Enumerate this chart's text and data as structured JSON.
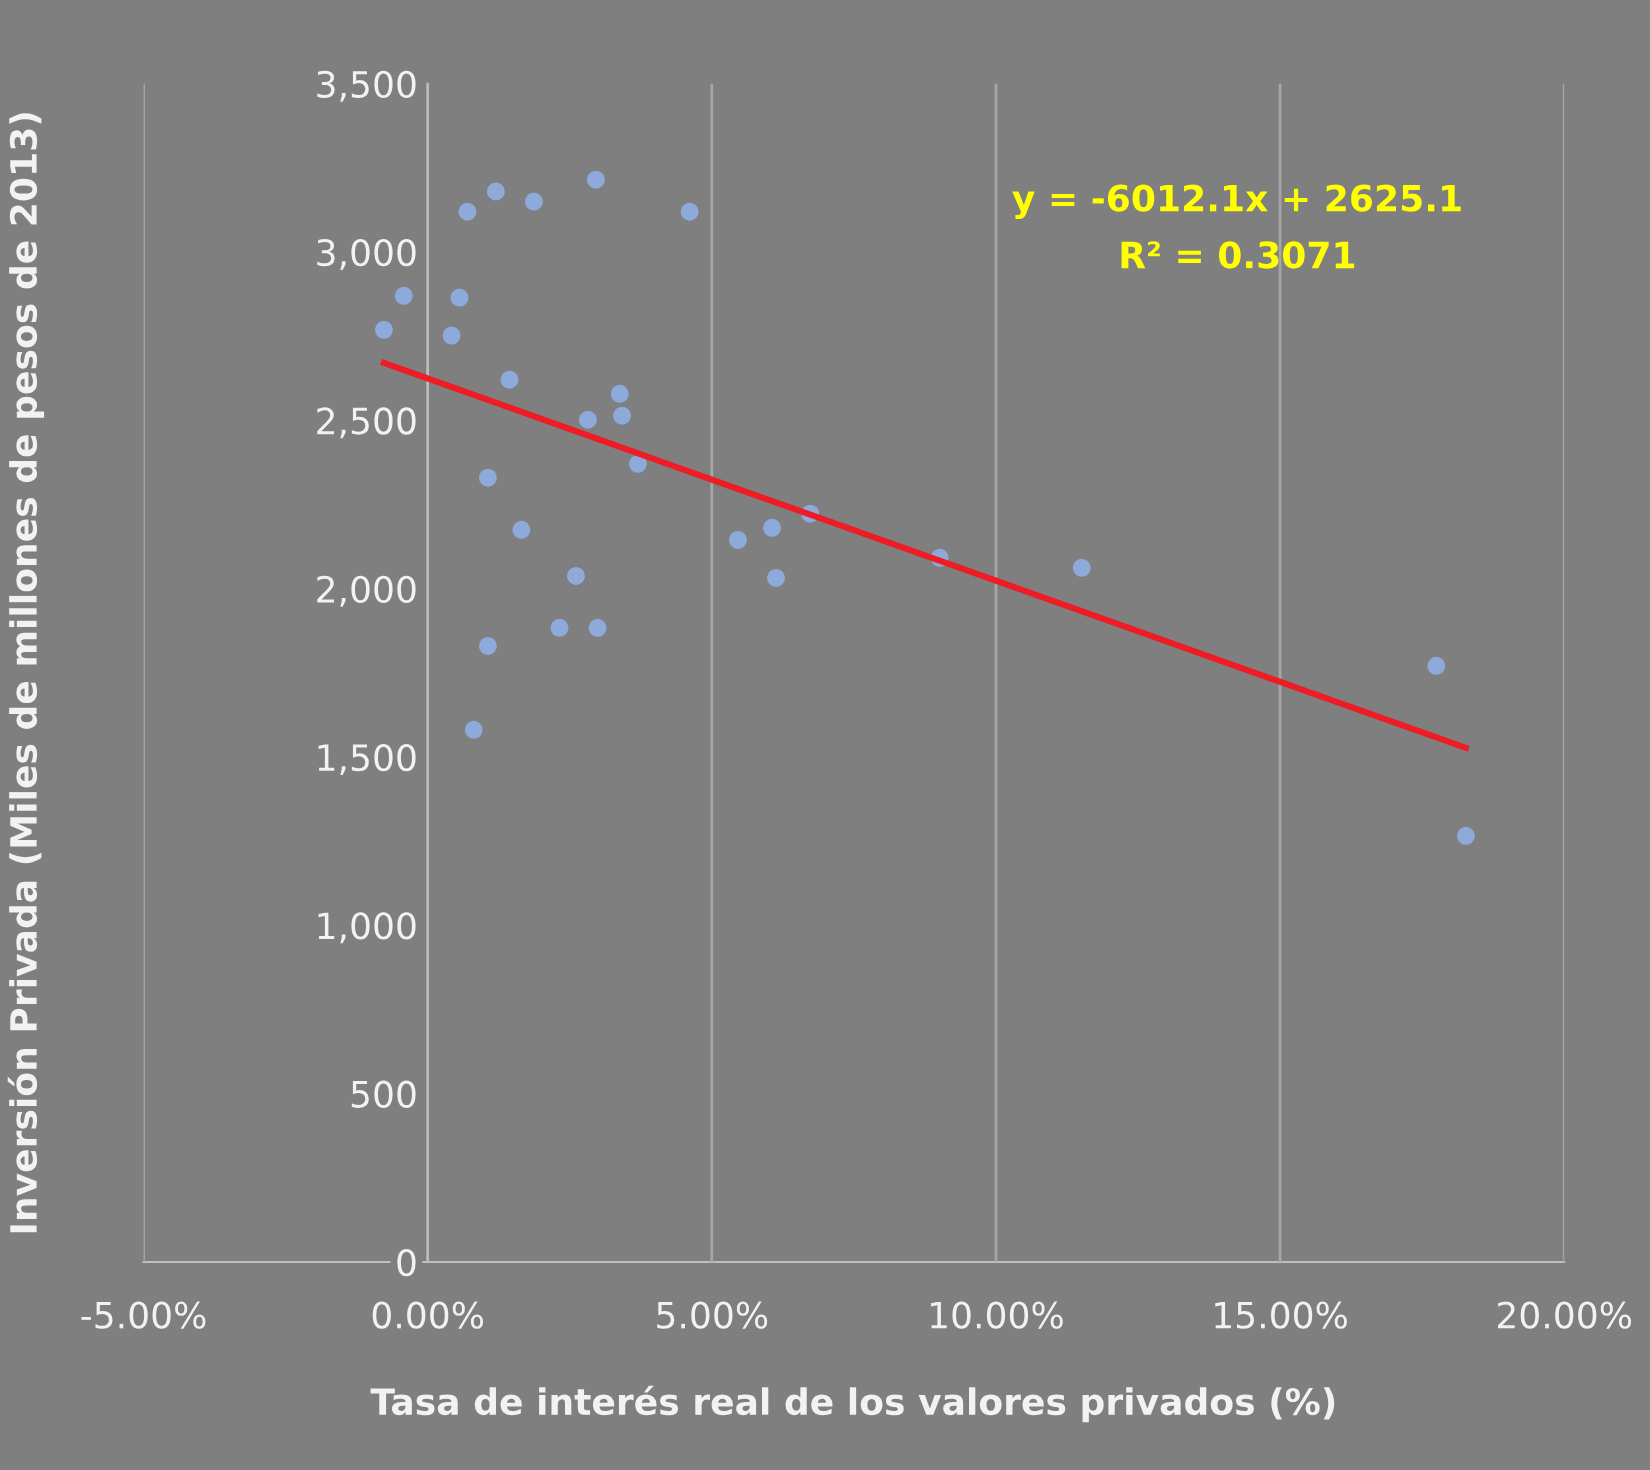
{
  "chart_data": {
    "type": "scatter",
    "xlabel": "Tasa de interés real de los valores privados (%)",
    "ylabel": "Inversión Privada (Miles de millones de pesos de 2013)",
    "annotations": [
      "y = -6012.1x + 2625.1",
      "R² = 0.3071"
    ],
    "xlim": [
      -0.05,
      0.2
    ],
    "xticks": [
      {
        "value": -0.05,
        "label": "-5.00%"
      },
      {
        "value": 0,
        "label": "0.00%"
      },
      {
        "value": 0.05,
        "label": "5.00%"
      },
      {
        "value": 0.1,
        "label": "10.00%"
      },
      {
        "value": 0.15,
        "label": "15.00%"
      },
      {
        "value": 0.2,
        "label": "20.00%"
      }
    ],
    "ylim": [
      0,
      3500
    ],
    "yticks": [
      {
        "value": 0,
        "label": "0"
      },
      {
        "value": 500,
        "label": "500"
      },
      {
        "value": 1000,
        "label": "1,000"
      },
      {
        "value": 1500,
        "label": "1,500"
      },
      {
        "value": 2000,
        "label": "2,000"
      },
      {
        "value": 2500,
        "label": "2,500"
      },
      {
        "value": 3000,
        "label": "3,000"
      },
      {
        "value": 3500,
        "label": "3,500"
      }
    ],
    "grid": "x",
    "legend": false,
    "marker": "circle",
    "series": [
      {
        "color": "#8eaadb",
        "x": [
          -0.0077,
          -0.0042,
          0.0042,
          0.0056,
          0.007,
          0.012,
          0.0187,
          0.0296,
          0.0461,
          0.0144,
          0.0106,
          0.0165,
          0.0282,
          0.0338,
          0.0342,
          0.037,
          0.0261,
          0.0232,
          0.0299,
          0.0106,
          0.0081,
          0.0546,
          0.0606,
          0.0613,
          0.0673,
          0.0901,
          0.1151,
          0.1775,
          0.1827
        ],
        "values": [
          2769,
          2870,
          2752,
          2865,
          3120,
          3180,
          3150,
          3215,
          3120,
          2621,
          2330,
          2175,
          2502,
          2579,
          2514,
          2371,
          2038,
          1884,
          1884,
          1830,
          1581,
          2145,
          2181,
          2032,
          2223,
          2092,
          2062,
          1771,
          1266
        ]
      },
      {
        "type": "line",
        "color": "#ee1c25",
        "marker": "none",
        "line_style": "solid",
        "x": [
          -0.0077,
          0.1827
        ],
        "values": [
          2671,
          1527
        ]
      }
    ]
  }
}
